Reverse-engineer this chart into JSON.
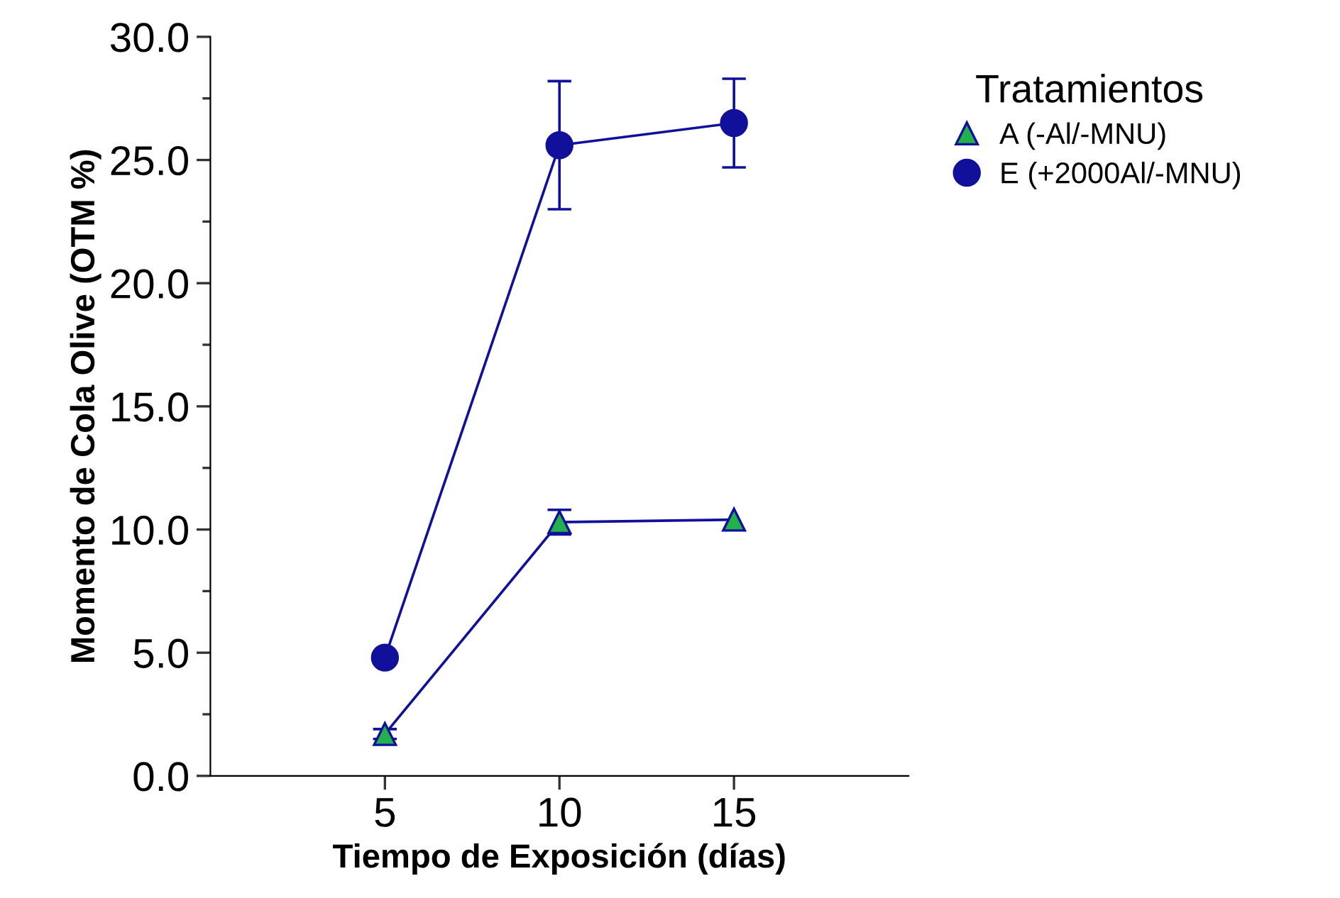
{
  "chart_data": {
    "type": "line",
    "xlabel": "Tiempo de Exposición (días)",
    "ylabel": "Momento de Cola Olive (OTM %)",
    "legend_title": "Tratamientos",
    "x": [
      5,
      10,
      15
    ],
    "series": [
      {
        "name": "A (-Al/-MNU)",
        "color": "#22b14c",
        "marker": "triangle",
        "values": [
          1.7,
          10.3,
          10.4
        ],
        "errors": [
          [
            1.5,
            1.9
          ],
          [
            9.8,
            10.8
          ],
          null
        ]
      },
      {
        "name": "E (+2000Al/-MNU)",
        "color": "#10109a",
        "marker": "circle",
        "values": [
          4.8,
          25.6,
          26.5
        ],
        "errors": [
          null,
          [
            23.0,
            28.2
          ],
          [
            24.7,
            28.3
          ]
        ]
      }
    ],
    "xlim": [
      0,
      20
    ],
    "xticks": [
      5,
      10,
      15
    ],
    "ylim": [
      0,
      30
    ],
    "yticks": [
      {
        "value": 0,
        "label": "0.0"
      },
      {
        "value": 2.5,
        "label": null
      },
      {
        "value": 5,
        "label": "5.0"
      },
      {
        "value": 7.5,
        "label": null
      },
      {
        "value": 10,
        "label": "10.0"
      },
      {
        "value": 12.5,
        "label": null
      },
      {
        "value": 15,
        "label": "15.0"
      },
      {
        "value": 17.5,
        "label": null
      },
      {
        "value": 20,
        "label": "20.0"
      },
      {
        "value": 22.5,
        "label": null
      },
      {
        "value": 25,
        "label": "25.0"
      },
      {
        "value": 27.5,
        "label": null
      },
      {
        "value": 30,
        "label": "30.0"
      }
    ],
    "grid": false,
    "legend": "right",
    "line_style": "solid"
  }
}
